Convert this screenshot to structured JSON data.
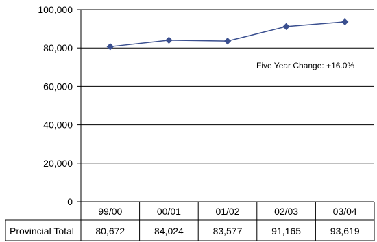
{
  "chart_data": {
    "type": "line",
    "categories": [
      "99/00",
      "00/01",
      "01/02",
      "02/03",
      "03/04"
    ],
    "series": [
      {
        "values": [
          80672,
          84024,
          83577,
          91165,
          93619
        ],
        "color": "#3a4f8f"
      }
    ],
    "ylim": [
      0,
      100000
    ],
    "ytick_values": [
      0,
      20000,
      40000,
      60000,
      80000,
      100000
    ],
    "ytick_labels": [
      "0",
      "20,000",
      "40,000",
      "60,000",
      "80,000",
      "100,000"
    ],
    "grid": true,
    "annotation": "Five Year Change: +16.0%",
    "table": {
      "row_label": "Provincial Total",
      "cells": [
        "80,672",
        "84,024",
        "83,577",
        "91,165",
        "93,619"
      ]
    }
  }
}
